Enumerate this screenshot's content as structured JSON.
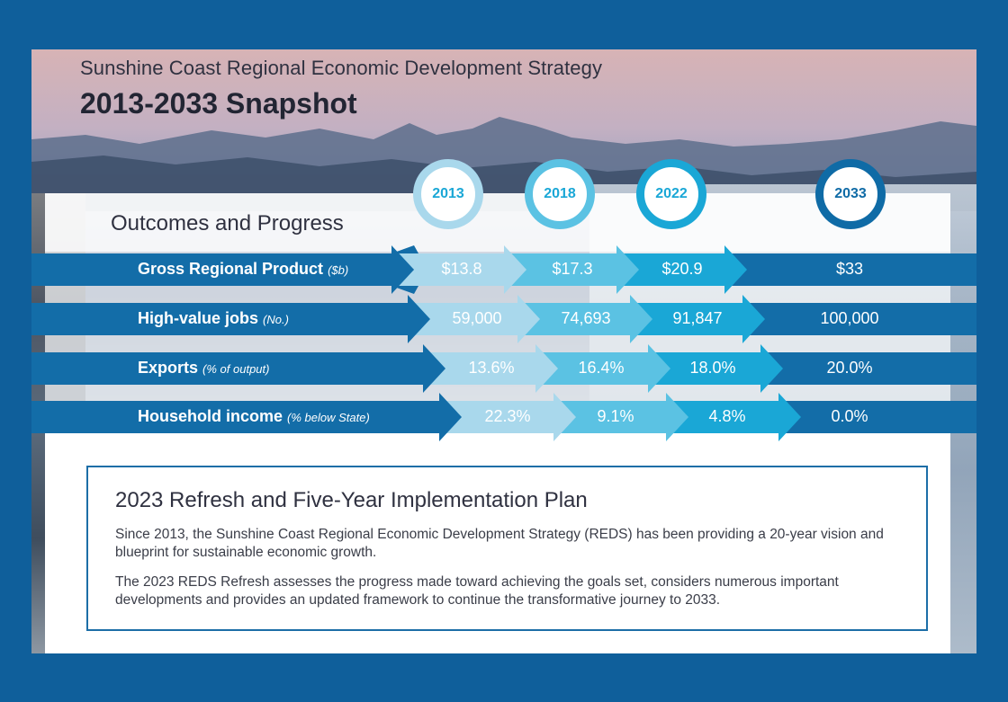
{
  "header": {
    "subtitle": "Sunshine Coast Regional Economic Development Strategy",
    "title": "2013-2033 Snapshot"
  },
  "outcomes": {
    "title": "Outcomes and Progress",
    "years": [
      "2013",
      "2018",
      "2022",
      "2033"
    ],
    "rows": [
      {
        "label": "Gross Regional Product",
        "unit": "($b)",
        "values": [
          "$13.8",
          "$17.3",
          "$20.9",
          "$33"
        ]
      },
      {
        "label": "High-value jobs",
        "unit": "(No.)",
        "values": [
          "59,000",
          "74,693",
          "91,847",
          "100,000"
        ]
      },
      {
        "label": "Exports",
        "unit": "(% of output)",
        "values": [
          "13.6%",
          "16.4%",
          "18.0%",
          "20.0%"
        ]
      },
      {
        "label": "Household income",
        "unit": "(% below State)",
        "values": [
          "22.3%",
          "9.1%",
          "4.8%",
          "0.0%"
        ]
      }
    ]
  },
  "plan": {
    "title": "2023 Refresh and Five-Year Implementation Plan",
    "paragraphs": [
      "Since 2013, the Sunshine Coast Regional Economic Development Strategy (REDS) has been providing a 20-year vision and blueprint for sustainable economic growth.",
      "The 2023 REDS Refresh assesses the progress made toward achieving the goals set, considers numerous important developments and provides an updated framework to continue the transformative journey to 2033."
    ]
  },
  "colors": {
    "background": "#0f5f9b",
    "dark_blue": "#136da8",
    "light_blue": "#a9d8ec",
    "mid_blue": "#5bc2e3",
    "teal_blue": "#1aa7d6",
    "deep_blue": "#0f6ba6"
  }
}
